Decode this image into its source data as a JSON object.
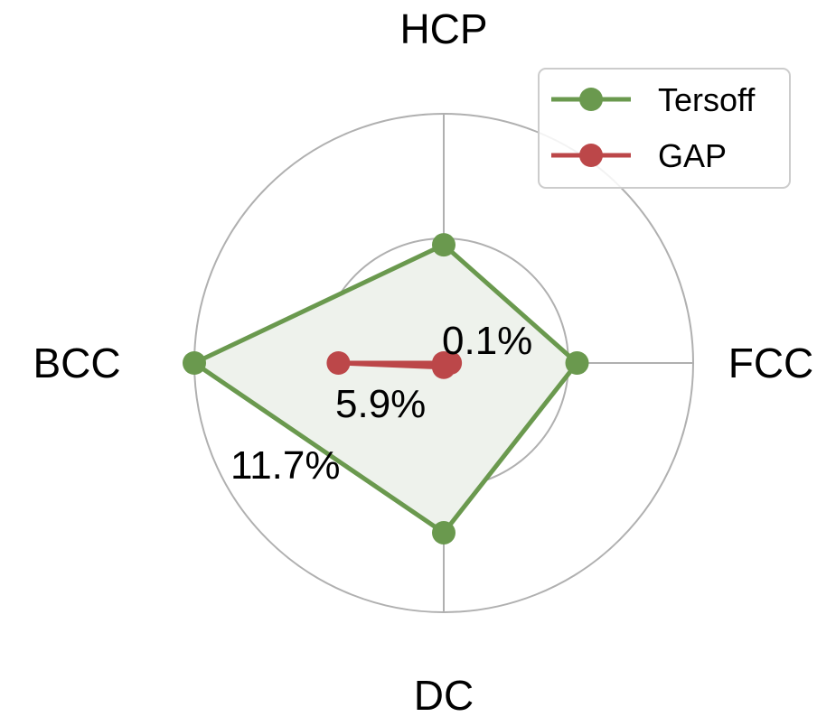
{
  "chart_data": {
    "type": "radar",
    "categories": [
      "FCC",
      "HCP",
      "BCC",
      "DC"
    ],
    "series": [
      {
        "name": "Tersoff",
        "values": [
          6.3,
          5.6,
          11.7,
          8.0
        ],
        "color": "#6a994e",
        "fill": "#eef2ec"
      },
      {
        "name": "GAP",
        "values": [
          0.4,
          0.1,
          5.0,
          0.3
        ],
        "color": "#bc4749"
      }
    ],
    "radial_ticks": [
      0.1,
      5.9,
      11.7
    ],
    "radial_tick_labels": [
      "0.1%",
      "5.9%",
      "11.7%"
    ],
    "rlim": [
      0.1,
      11.7
    ],
    "legend": "top-right",
    "grid": true,
    "grid_color": "#b0b0b0"
  }
}
